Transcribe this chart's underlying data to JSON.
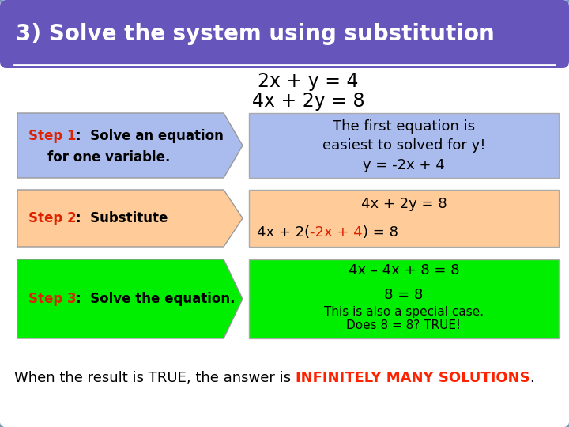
{
  "title": "3) Solve the system using substitution",
  "title_bg": "#6655bb",
  "title_fg": "#ffffff",
  "outer_bg": "#6688aa",
  "card_bg": "#ffffff",
  "card_edge": "#7799bb",
  "eq1": "2x + y = 4",
  "eq2": "4x + 2y = 8",
  "step1_label": "Step 1",
  "step1_colon": ":  Solve an equation",
  "step1_line2": "for one variable.",
  "step1_color": "#aabbee",
  "step2_label": "Step 2",
  "step2_colon": ":  Substitute",
  "step2_color": "#ffcc99",
  "step3_label": "Step 3",
  "step3_colon": ":  Solve the equation.",
  "step3_color": "#00ee00",
  "red_color": "#dd2200",
  "box1_color": "#aabbee",
  "box1_line1": "The first equation is",
  "box1_line2": "easiest to solved for y!",
  "box1_line3": "y = -2x + 4",
  "box2_color": "#ffcc99",
  "box2_line1": "4x + 2y = 8",
  "box2_pre": "4x + 2(",
  "box2_red": "-2x + 4",
  "box2_post": ") = 8",
  "box3_color": "#00ee00",
  "box3_line1": "4x – 4x + 8 = 8",
  "box3_line2": "8 = 8",
  "box3_line3": "This is also a special case.",
  "box3_line4": "Does 8 = 8? TRUE!",
  "bottom_normal": "When the result is TRUE, the answer is ",
  "bottom_highlight": "INFINITELY MANY SOLUTIONS",
  "bottom_end": ".",
  "bottom_highlight_color": "#ff2200",
  "sep_line_color": "#ffffff"
}
